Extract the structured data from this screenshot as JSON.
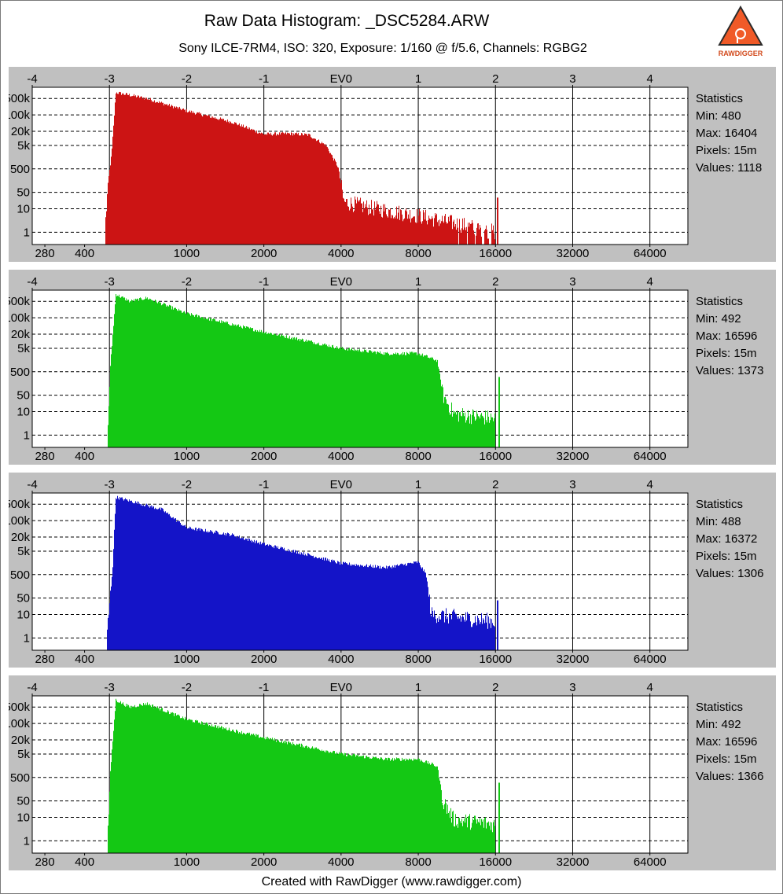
{
  "header": {
    "title": "Raw Data Histogram: _DSC5284.ARW",
    "subtitle": "Sony ILCE-7RM4, ISO: 320, Exposure: 1/160 @ f/5.6, Channels: RGBG2",
    "logo_text": "RAWDIGGER"
  },
  "footer": {
    "text": "Created with RawDigger (www.rawdigger.com)"
  },
  "colors": {
    "panel_bg": "#c0c0c0",
    "plot_bg": "#ffffff",
    "grid": "#000000"
  },
  "chart_data": [
    {
      "type": "bar",
      "scale": "log-log",
      "color": "#cc1414",
      "ev_ticks": [
        "-4",
        "-3",
        "-2",
        "-1",
        "EV0",
        "1",
        "2",
        "3",
        "4"
      ],
      "ev_tick_values": [
        -4,
        -3,
        -2,
        -1,
        0,
        1,
        2,
        3,
        4
      ],
      "raw_ticks": [
        "280",
        "400",
        "1000",
        "2000",
        "4000",
        "8000",
        "16000",
        "32000",
        "64000"
      ],
      "raw_tick_values": [
        280,
        400,
        1000,
        2000,
        4000,
        8000,
        16000,
        32000,
        64000
      ],
      "y_ticks": [
        "500k",
        "100k",
        "20k",
        "5k",
        "500",
        "50",
        "10",
        "1"
      ],
      "y_tick_values": [
        500000,
        100000,
        20000,
        5000,
        500,
        50,
        10,
        1
      ],
      "x_range_raw": [
        250,
        90000
      ],
      "y_range": [
        0.3,
        1500000
      ],
      "ev0_raw": 4000,
      "envelope": [
        [
          480,
          1
        ],
        [
          495,
          150
        ],
        [
          510,
          2000
        ],
        [
          530,
          900000
        ],
        [
          600,
          700000
        ],
        [
          700,
          500000
        ],
        [
          1000,
          150000
        ],
        [
          1500,
          50000
        ],
        [
          2000,
          15000
        ],
        [
          2500,
          16000
        ],
        [
          3000,
          14000
        ],
        [
          3500,
          5000
        ],
        [
          3900,
          600
        ],
        [
          4100,
          20
        ],
        [
          5000,
          12
        ],
        [
          8000,
          5
        ],
        [
          12000,
          2
        ],
        [
          16000,
          1
        ]
      ],
      "spike": [
        16404,
        30
      ],
      "min_raw": 480,
      "max_raw": 16404,
      "stats": {
        "title": "Statistics",
        "min": "Min: 480",
        "max": "Max: 16404",
        "pixels": "Pixels: 15m",
        "values": "Values: 1118"
      }
    },
    {
      "type": "bar",
      "scale": "log-log",
      "color": "#14c814",
      "ev_ticks": [
        "-4",
        "-3",
        "-2",
        "-1",
        "EV0",
        "1",
        "2",
        "3",
        "4"
      ],
      "ev_tick_values": [
        -4,
        -3,
        -2,
        -1,
        0,
        1,
        2,
        3,
        4
      ],
      "raw_ticks": [
        "280",
        "400",
        "1000",
        "2000",
        "4000",
        "8000",
        "16000",
        "32000",
        "64000"
      ],
      "raw_tick_values": [
        280,
        400,
        1000,
        2000,
        4000,
        8000,
        16000,
        32000,
        64000
      ],
      "y_ticks": [
        "500k",
        "100k",
        "20k",
        "5k",
        "500",
        "50",
        "10",
        "1"
      ],
      "y_tick_values": [
        500000,
        100000,
        20000,
        5000,
        500,
        50,
        10,
        1
      ],
      "x_range_raw": [
        250,
        90000
      ],
      "y_range": [
        0.3,
        1500000
      ],
      "ev0_raw": 4000,
      "envelope": [
        [
          492,
          1
        ],
        [
          505,
          1000
        ],
        [
          530,
          1000000
        ],
        [
          600,
          500000
        ],
        [
          700,
          700000
        ],
        [
          800,
          400000
        ],
        [
          1000,
          150000
        ],
        [
          2000,
          25000
        ],
        [
          3000,
          10000
        ],
        [
          4000,
          5000
        ],
        [
          6000,
          3000
        ],
        [
          8000,
          3000
        ],
        [
          9500,
          1500
        ],
        [
          10000,
          50
        ],
        [
          11000,
          8
        ],
        [
          16000,
          5
        ]
      ],
      "spike": [
        16596,
        300
      ],
      "min_raw": 492,
      "max_raw": 16596,
      "stats": {
        "title": "Statistics",
        "min": "Min: 492",
        "max": "Max: 16596",
        "pixels": "Pixels: 15m",
        "values": "Values: 1373"
      }
    },
    {
      "type": "bar",
      "scale": "log-log",
      "color": "#1414c8",
      "ev_ticks": [
        "-4",
        "-3",
        "-2",
        "-1",
        "EV0",
        "1",
        "2",
        "3",
        "4"
      ],
      "ev_tick_values": [
        -4,
        -3,
        -2,
        -1,
        0,
        1,
        2,
        3,
        4
      ],
      "raw_ticks": [
        "280",
        "400",
        "1000",
        "2000",
        "4000",
        "8000",
        "16000",
        "32000",
        "64000"
      ],
      "raw_tick_values": [
        280,
        400,
        1000,
        2000,
        4000,
        8000,
        16000,
        32000,
        64000
      ],
      "y_ticks": [
        "500k",
        "100k",
        "20k",
        "5k",
        "500",
        "50",
        "10",
        "1"
      ],
      "y_tick_values": [
        500000,
        100000,
        20000,
        5000,
        500,
        50,
        10,
        1
      ],
      "x_range_raw": [
        250,
        90000
      ],
      "y_range": [
        0.3,
        1500000
      ],
      "ev0_raw": 4000,
      "envelope": [
        [
          488,
          1
        ],
        [
          500,
          20
        ],
        [
          515,
          1000
        ],
        [
          530,
          1000000
        ],
        [
          600,
          700000
        ],
        [
          800,
          300000
        ],
        [
          1000,
          50000
        ],
        [
          1500,
          25000
        ],
        [
          2000,
          10000
        ],
        [
          3000,
          3500
        ],
        [
          4000,
          1500
        ],
        [
          6000,
          1000
        ],
        [
          8000,
          1700
        ],
        [
          8600,
          500
        ],
        [
          9000,
          10
        ],
        [
          16000,
          5
        ]
      ],
      "spike": [
        16372,
        40
      ],
      "min_raw": 488,
      "max_raw": 16372,
      "stats": {
        "title": "Statistics",
        "min": "Min: 488",
        "max": "Max: 16372",
        "pixels": "Pixels: 15m",
        "values": "Values: 1306"
      }
    },
    {
      "type": "bar",
      "scale": "log-log",
      "color": "#14c814",
      "ev_ticks": [
        "-4",
        "-3",
        "-2",
        "-1",
        "EV0",
        "1",
        "2",
        "3",
        "4"
      ],
      "ev_tick_values": [
        -4,
        -3,
        -2,
        -1,
        0,
        1,
        2,
        3,
        4
      ],
      "raw_ticks": [
        "280",
        "400",
        "1000",
        "2000",
        "4000",
        "8000",
        "16000",
        "32000",
        "64000"
      ],
      "raw_tick_values": [
        280,
        400,
        1000,
        2000,
        4000,
        8000,
        16000,
        32000,
        64000
      ],
      "y_ticks": [
        "500k",
        "100k",
        "20k",
        "5k",
        "500",
        "50",
        "10",
        "1"
      ],
      "y_tick_values": [
        500000,
        100000,
        20000,
        5000,
        500,
        50,
        10,
        1
      ],
      "x_range_raw": [
        250,
        90000
      ],
      "y_range": [
        0.3,
        1500000
      ],
      "ev0_raw": 4000,
      "envelope": [
        [
          492,
          1
        ],
        [
          505,
          1000
        ],
        [
          530,
          1000000
        ],
        [
          600,
          500000
        ],
        [
          700,
          700000
        ],
        [
          800,
          400000
        ],
        [
          1000,
          150000
        ],
        [
          2000,
          25000
        ],
        [
          3000,
          10000
        ],
        [
          4000,
          5000
        ],
        [
          6000,
          3000
        ],
        [
          8000,
          3000
        ],
        [
          9500,
          1500
        ],
        [
          10000,
          50
        ],
        [
          11000,
          8
        ],
        [
          16000,
          5
        ]
      ],
      "spike": [
        16596,
        300
      ],
      "min_raw": 492,
      "max_raw": 16596,
      "stats": {
        "title": "Statistics",
        "min": "Min: 492",
        "max": "Max: 16596",
        "pixels": "Pixels: 15m",
        "values": "Values: 1366"
      }
    }
  ]
}
